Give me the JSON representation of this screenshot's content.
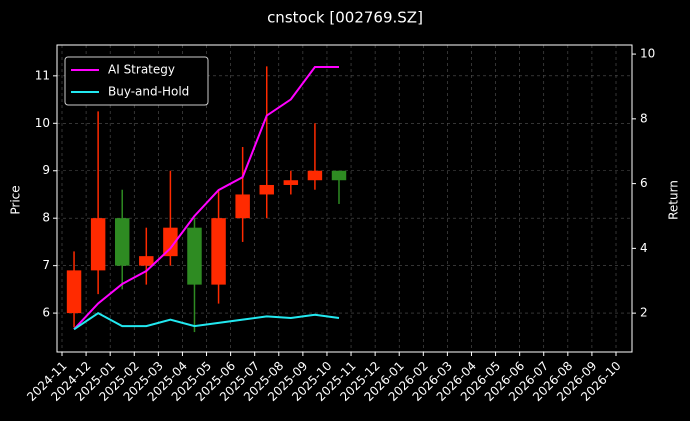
{
  "chart_data": {
    "type": "candlestick",
    "title": "cnstock [002769.SZ]",
    "y_label": "Price",
    "y2_label": "Return",
    "x": [
      "2024-11",
      "2024-12",
      "2025-01",
      "2025-02",
      "2025-03",
      "2025-04",
      "2025-05",
      "2025-06",
      "2025-07",
      "2025-08",
      "2025-09",
      "2025-10"
    ],
    "open": [
      6.0,
      6.9,
      8.0,
      7.0,
      7.2,
      7.8,
      6.6,
      8.0,
      8.5,
      8.7,
      8.8,
      9.0
    ],
    "high": [
      7.3,
      10.25,
      8.6,
      7.8,
      9.0,
      8.0,
      8.6,
      9.5,
      11.2,
      9.0,
      10.0,
      9.0
    ],
    "low": [
      5.7,
      6.4,
      6.5,
      6.6,
      7.0,
      5.6,
      6.2,
      7.5,
      8.0,
      8.5,
      8.6,
      8.3
    ],
    "close": [
      6.9,
      8.0,
      7.0,
      7.2,
      7.8,
      6.6,
      8.0,
      8.5,
      8.7,
      8.8,
      9.0,
      8.8
    ],
    "up_color": "#ff2a00",
    "down_color": "#2e8b22",
    "series": [
      {
        "name": "AI Strategy",
        "color": "#ff00ff",
        "axis": "y2",
        "values": [
          1.5,
          2.3,
          2.9,
          3.3,
          4.0,
          5.0,
          5.8,
          6.2,
          8.1,
          8.6,
          9.6,
          9.6
        ]
      },
      {
        "name": "Buy-and-Hold",
        "color": "#22e8f0",
        "axis": "y2",
        "values": [
          1.5,
          2.0,
          1.6,
          1.6,
          1.8,
          1.6,
          1.7,
          1.8,
          1.9,
          1.85,
          1.95,
          1.85
        ]
      }
    ],
    "ylim": [
      5.18,
      11.65
    ],
    "yticks": [
      6,
      7,
      8,
      9,
      10,
      11
    ],
    "y2lim": [
      0.8,
      10.28
    ],
    "y2ticks": [
      2,
      4,
      6,
      8,
      10
    ],
    "xticks": [
      "2024-11",
      "2024-12",
      "2025-01",
      "2025-02",
      "2025-03",
      "2025-04",
      "2025-05",
      "2025-06",
      "2025-07",
      "2025-08",
      "2025-09",
      "2025-10",
      "2025-11",
      "2025-12",
      "2026-01",
      "2026-02",
      "2026-03",
      "2026-04",
      "2026-05",
      "2026-06",
      "2026-07",
      "2026-08",
      "2026-09",
      "2026-10"
    ],
    "grid": true,
    "legend": "upper-left"
  }
}
